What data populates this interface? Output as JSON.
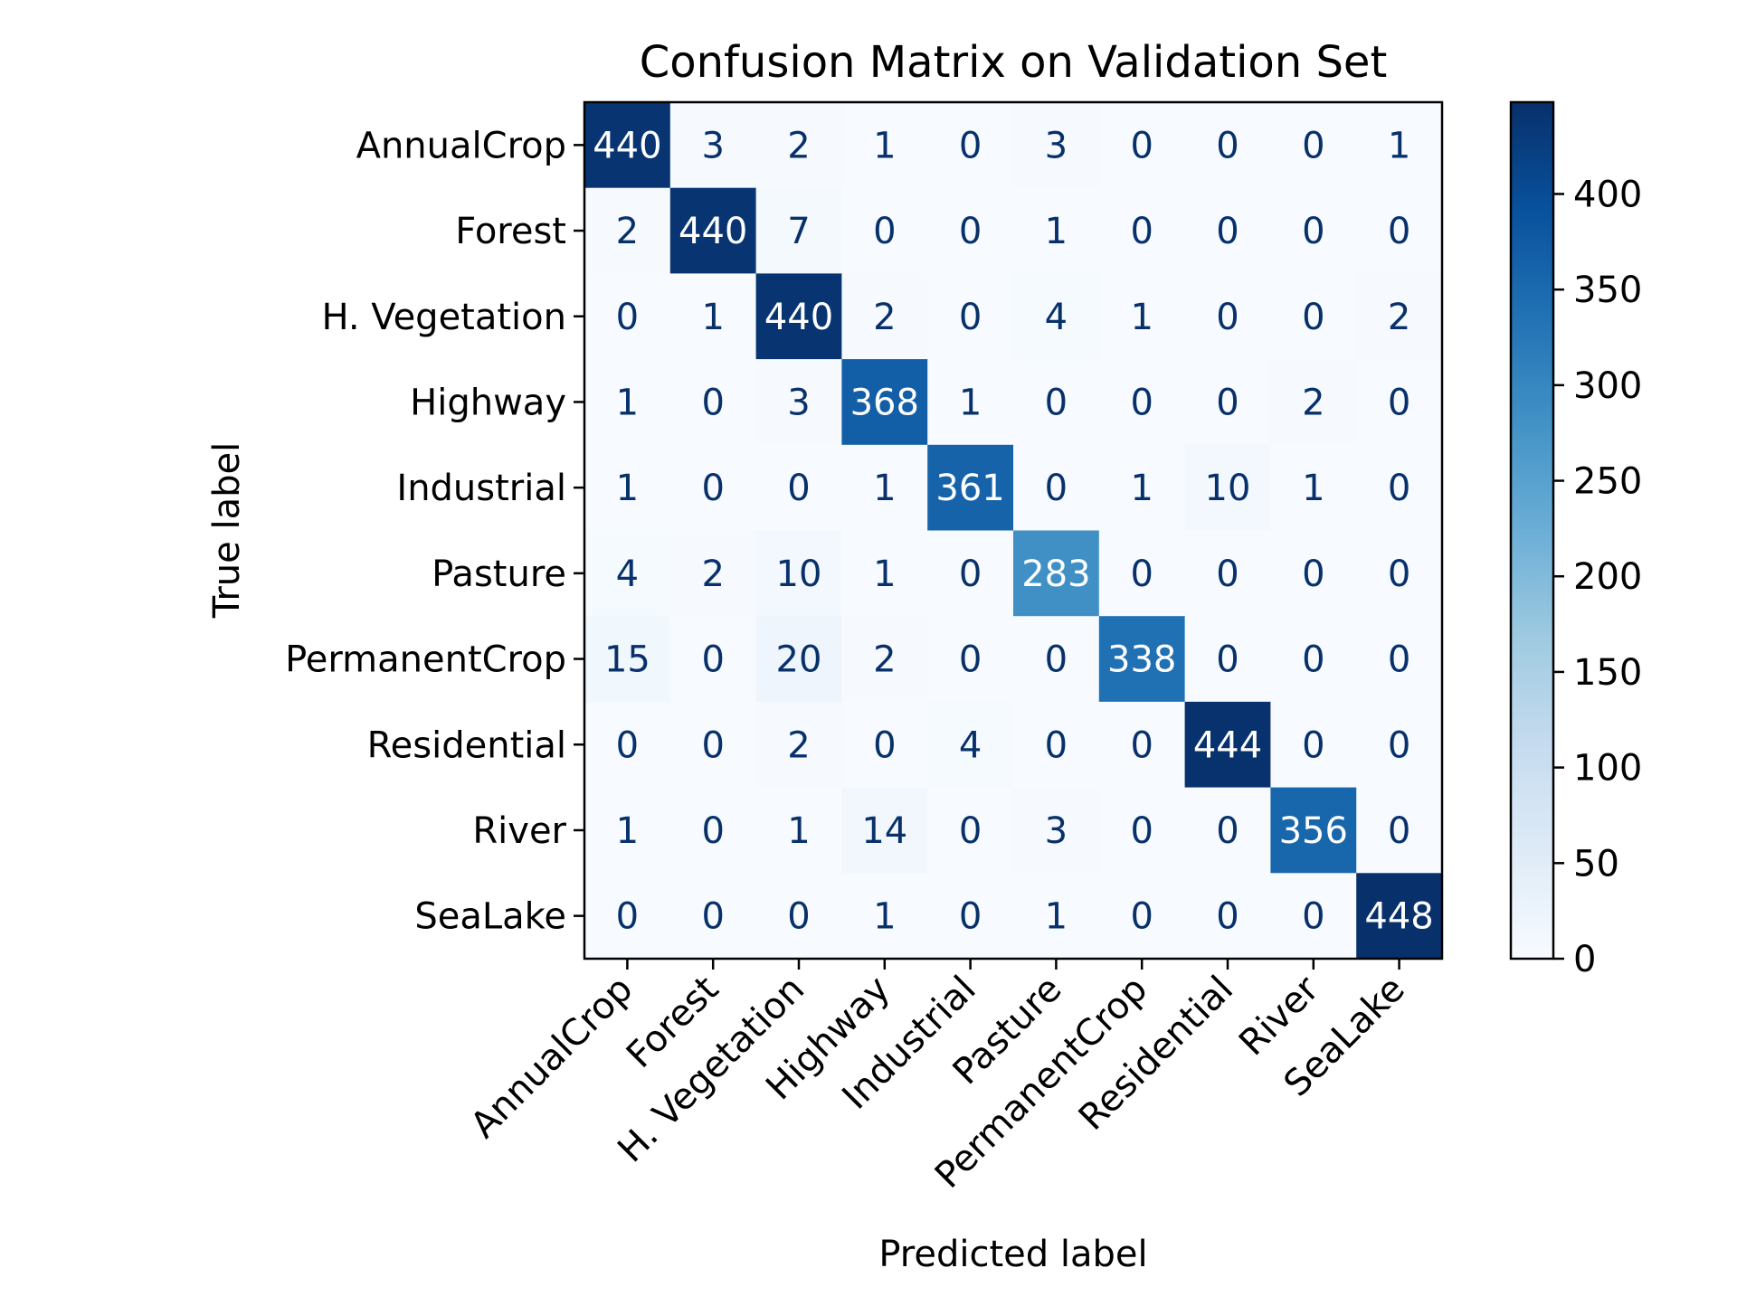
{
  "chart_data": {
    "type": "heatmap",
    "title": "Confusion Matrix on Validation Set",
    "xlabel": "Predicted label",
    "ylabel": "True label",
    "classes": [
      "AnnualCrop",
      "Forest",
      "H. Vegetation",
      "Highway",
      "Industrial",
      "Pasture",
      "PermanentCrop",
      "Residential",
      "River",
      "SeaLake"
    ],
    "matrix": [
      [
        440,
        3,
        2,
        1,
        0,
        3,
        0,
        0,
        0,
        1
      ],
      [
        2,
        440,
        7,
        0,
        0,
        1,
        0,
        0,
        0,
        0
      ],
      [
        0,
        1,
        440,
        2,
        0,
        4,
        1,
        0,
        0,
        2
      ],
      [
        1,
        0,
        3,
        368,
        1,
        0,
        0,
        0,
        2,
        0
      ],
      [
        1,
        0,
        0,
        1,
        361,
        0,
        1,
        10,
        1,
        0
      ],
      [
        4,
        2,
        10,
        1,
        0,
        283,
        0,
        0,
        0,
        0
      ],
      [
        15,
        0,
        20,
        2,
        0,
        0,
        338,
        0,
        0,
        0
      ],
      [
        0,
        0,
        2,
        0,
        4,
        0,
        0,
        444,
        0,
        0
      ],
      [
        1,
        0,
        1,
        14,
        0,
        3,
        0,
        0,
        356,
        0
      ],
      [
        0,
        0,
        0,
        1,
        0,
        1,
        0,
        0,
        0,
        448
      ]
    ],
    "colormap": "Blues",
    "colorbar": {
      "range": [
        0,
        448
      ],
      "ticks": [
        0,
        50,
        100,
        150,
        200,
        250,
        300,
        350,
        400
      ]
    },
    "grid": false
  },
  "colors": {
    "light_text": "#ffffff",
    "dark_text": "#08306b",
    "axis": "#000000"
  }
}
